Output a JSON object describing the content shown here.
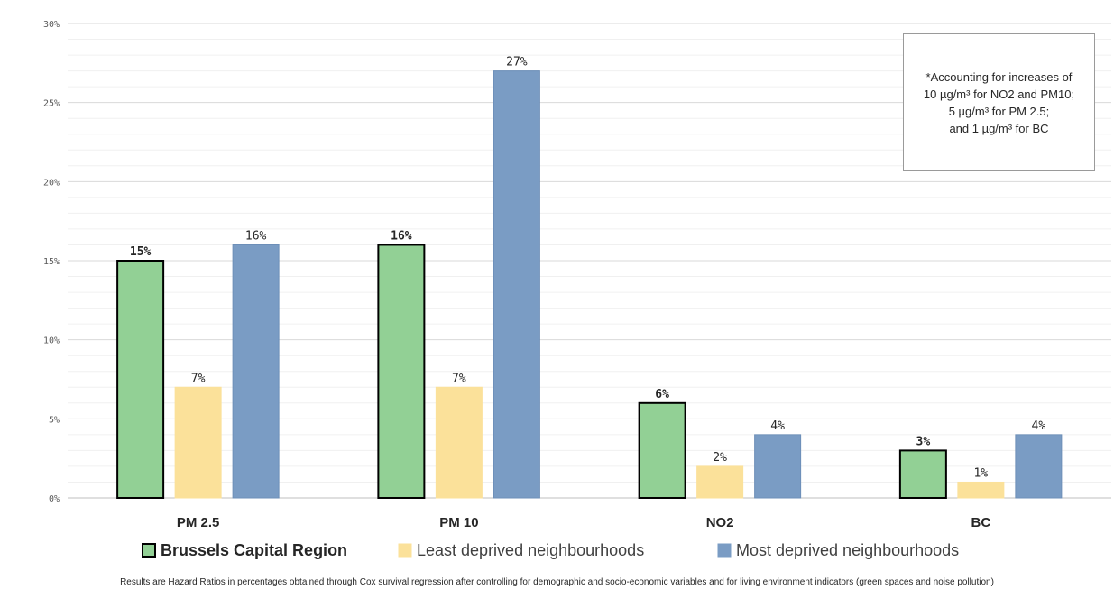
{
  "chart_data": {
    "type": "bar",
    "categories": [
      "PM 2.5",
      "PM 10",
      "NO2",
      "BC"
    ],
    "series": [
      {
        "name": "Brussels Capital Region",
        "values": [
          15,
          16,
          6,
          3
        ],
        "labels": [
          "15%",
          "16%",
          "6%",
          "3%"
        ],
        "color": "#92d095",
        "border": "#000000"
      },
      {
        "name": "Least deprived neighbourhoods",
        "values": [
          7,
          7,
          2,
          1
        ],
        "labels": [
          "7%",
          "7%",
          "2%",
          "1%"
        ],
        "color": "#fbe19a",
        "border": "#fbe19a"
      },
      {
        "name": "Most deprived neighbourhoods",
        "values": [
          16,
          27,
          4,
          4
        ],
        "labels": [
          "16%",
          "27%",
          "4%",
          "4%"
        ],
        "color": "#7a9cc4",
        "border": "#6d8fb8"
      }
    ],
    "ylim": [
      0,
      30
    ],
    "yticks": [
      0,
      5,
      10,
      15,
      20,
      25,
      30
    ],
    "ytick_labels": [
      "0%",
      "5%",
      "10%",
      "15%",
      "20%",
      "25%",
      "30%"
    ],
    "grid": true,
    "legend_position": "bottom",
    "annotation": {
      "lines": [
        "*Accounting for increases of",
        "10 µg/m³ for NO2 and PM10;",
        "5 µg/m³ for PM 2.5;",
        "and 1 µg/m³ for BC"
      ]
    },
    "footnote": "Results are Hazard Ratios in percentages obtained through Cox survival regression after controlling for demographic and socio-economic variables and for living environment indicators (green spaces and noise pollution)"
  }
}
